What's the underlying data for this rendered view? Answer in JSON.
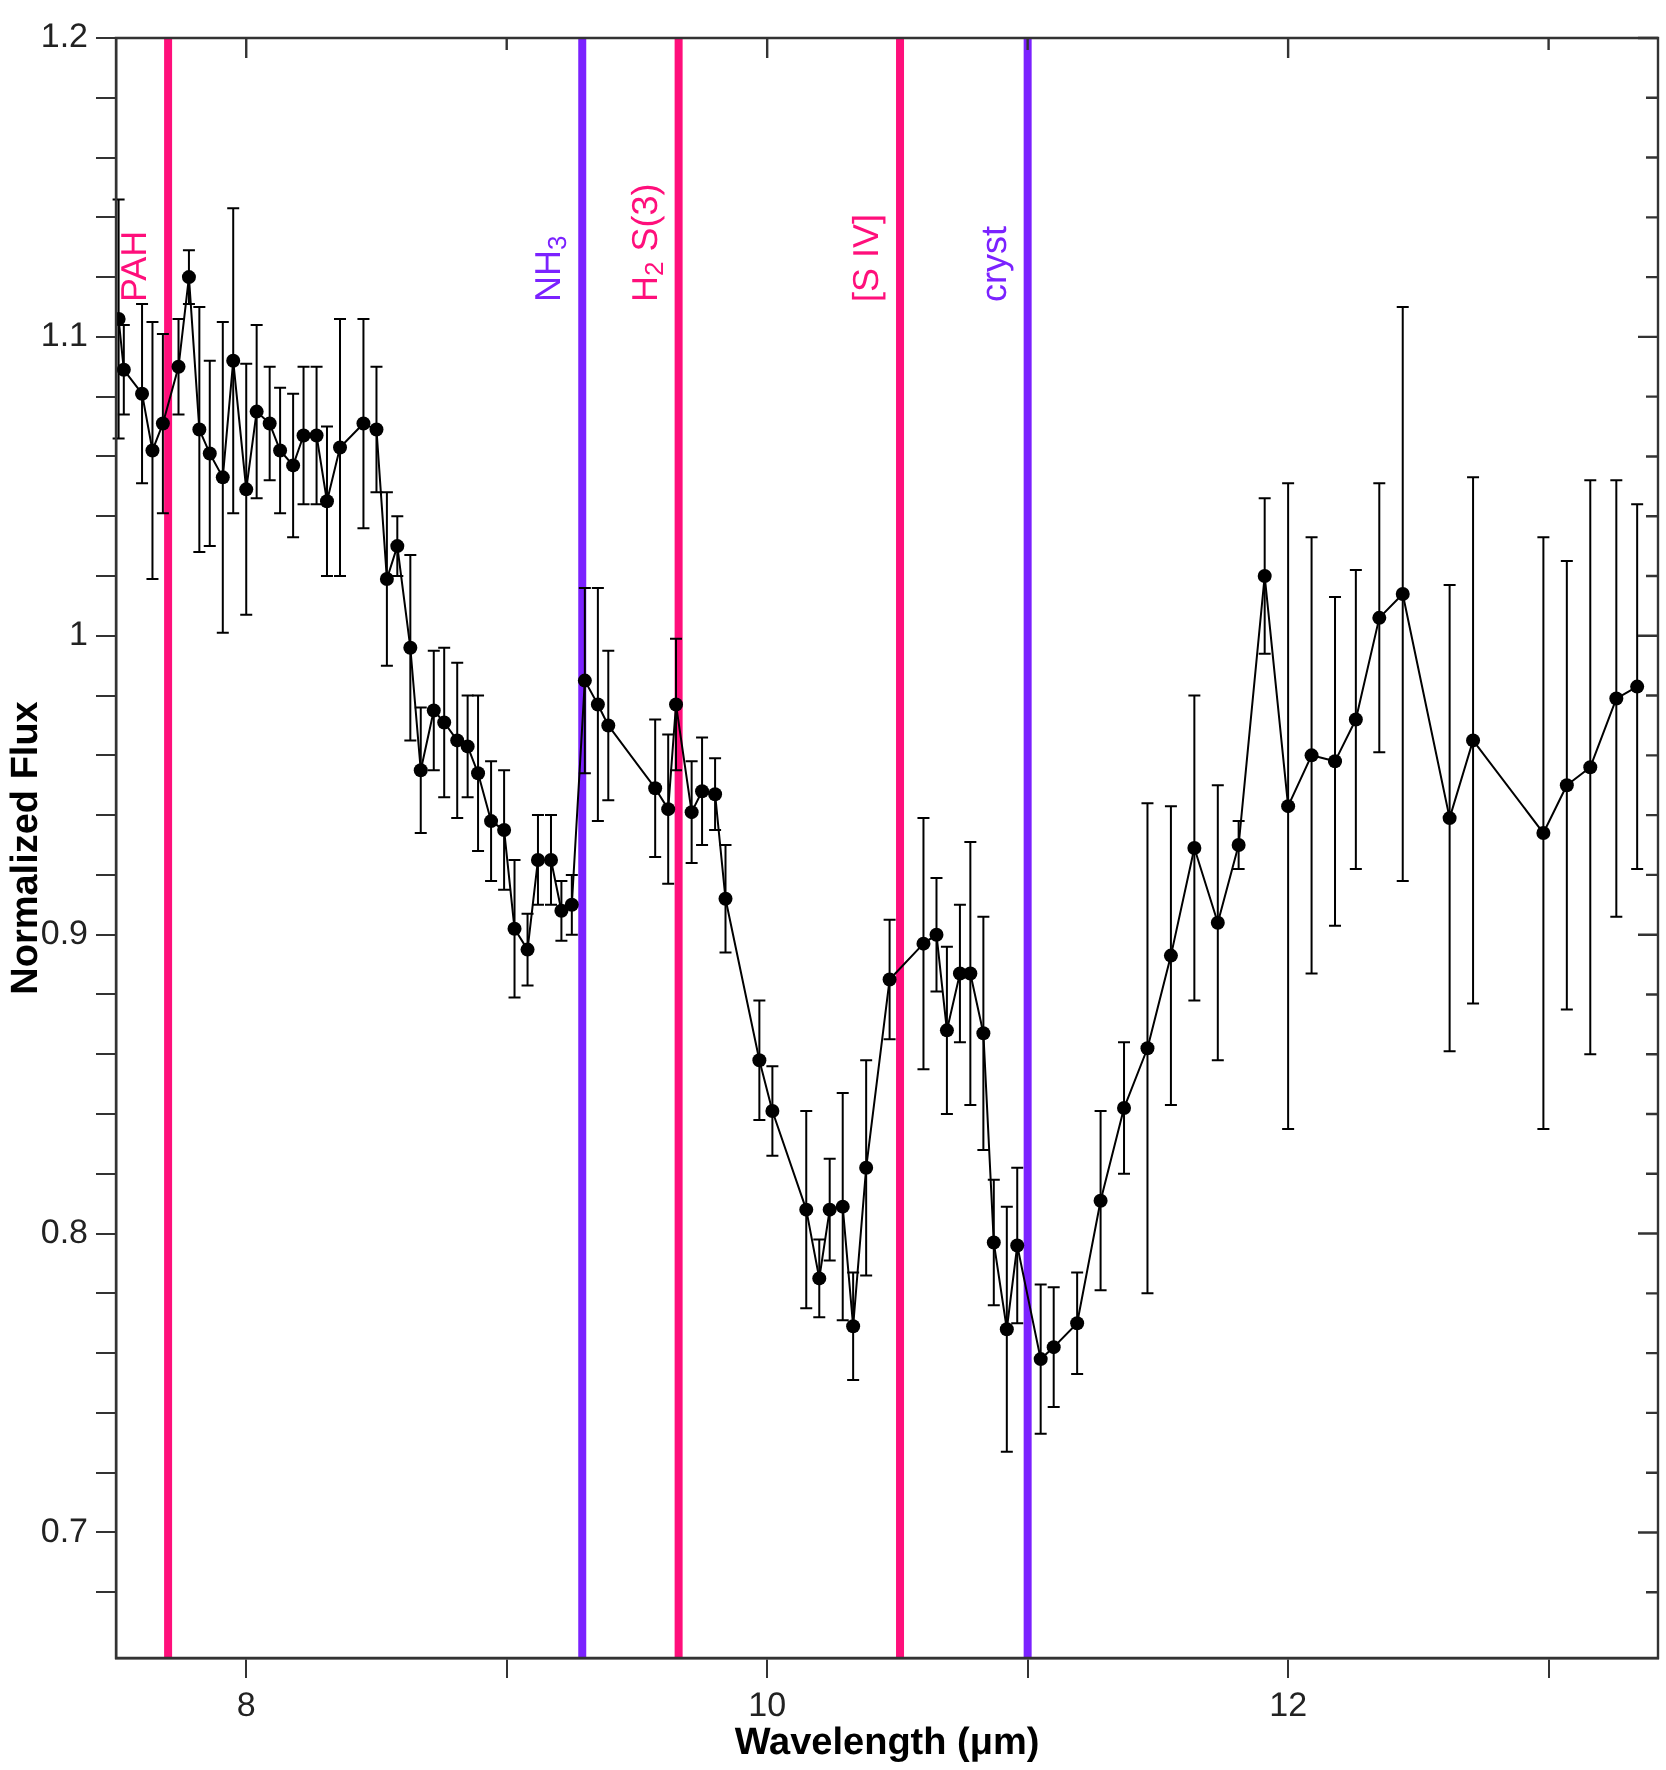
{
  "chart_data": {
    "type": "line",
    "xlabel": "Wavelength (μm)",
    "ylabel": "Normalized Flux",
    "x": [
      7.51,
      7.53,
      7.6,
      7.64,
      7.68,
      7.74,
      7.78,
      7.82,
      7.86,
      7.91,
      7.95,
      8.0,
      8.04,
      8.09,
      8.13,
      8.18,
      8.22,
      8.27,
      8.31,
      8.36,
      8.45,
      8.5,
      8.54,
      8.58,
      8.63,
      8.67,
      8.72,
      8.76,
      8.81,
      8.85,
      8.89,
      8.94,
      8.99,
      9.03,
      9.08,
      9.12,
      9.17,
      9.21,
      9.25,
      9.3,
      9.35,
      9.39,
      9.57,
      9.62,
      9.65,
      9.71,
      9.75,
      9.8,
      9.84,
      9.97,
      10.02,
      10.15,
      10.2,
      10.24,
      10.29,
      10.33,
      10.38,
      10.47,
      10.6,
      10.65,
      10.69,
      10.74,
      10.78,
      10.83,
      10.87,
      10.92,
      10.96,
      11.05,
      11.1,
      11.19,
      11.28,
      11.37,
      11.46,
      11.55,
      11.64,
      11.73,
      11.81,
      11.91,
      12.0,
      12.09,
      12.18,
      12.26,
      12.35,
      12.44,
      12.62,
      12.71,
      12.98,
      13.07,
      13.16,
      13.26,
      13.34
    ],
    "series": [
      {
        "color": "#000000",
        "values": [
          1.106,
          1.089,
          1.081,
          1.062,
          1.071,
          1.09,
          1.12,
          1.069,
          1.061,
          1.053,
          1.092,
          1.049,
          1.075,
          1.071,
          1.062,
          1.057,
          1.067,
          1.067,
          1.045,
          1.063,
          1.071,
          1.069,
          1.019,
          1.03,
          0.996,
          0.955,
          0.975,
          0.971,
          0.965,
          0.963,
          0.954,
          0.938,
          0.935,
          0.902,
          0.895,
          0.925,
          0.925,
          0.908,
          0.91,
          0.985,
          0.977,
          0.97,
          0.949,
          0.942,
          0.977,
          0.941,
          0.948,
          0.947,
          0.912,
          0.858,
          0.841,
          0.808,
          0.785,
          0.808,
          0.809,
          0.769,
          0.822,
          0.885,
          0.897,
          0.9,
          0.868,
          0.887,
          0.887,
          0.867,
          0.797,
          0.768,
          0.796,
          0.758,
          0.762,
          0.77,
          0.811,
          0.842,
          0.862,
          0.893,
          0.929,
          0.904,
          0.93,
          1.02,
          0.943,
          0.96,
          0.958,
          0.972,
          1.006,
          1.014,
          0.939,
          0.965,
          0.934,
          0.95,
          0.956,
          0.979,
          0.983
        ],
        "errors": [
          0.04,
          0.015,
          0.03,
          0.043,
          0.03,
          0.016,
          0.009,
          0.041,
          0.031,
          0.052,
          0.051,
          0.042,
          0.029,
          0.019,
          0.021,
          0.024,
          0.023,
          0.023,
          0.025,
          0.043,
          0.035,
          0.021,
          0.029,
          0.01,
          0.031,
          0.021,
          0.02,
          0.025,
          0.026,
          0.017,
          0.026,
          0.02,
          0.02,
          0.023,
          0.012,
          0.015,
          0.015,
          0.01,
          0.01,
          0.031,
          0.039,
          0.025,
          0.023,
          0.025,
          0.022,
          0.017,
          0.018,
          0.012,
          0.018,
          0.02,
          0.015,
          0.033,
          0.013,
          0.017,
          0.038,
          0.018,
          0.036,
          0.02,
          0.042,
          0.019,
          0.028,
          0.023,
          0.044,
          0.039,
          0.021,
          0.041,
          0.026,
          0.025,
          0.02,
          0.017,
          0.03,
          0.022,
          0.082,
          0.05,
          0.051,
          0.046,
          0.008,
          0.026,
          0.108,
          0.073,
          0.055,
          0.05,
          0.045,
          0.096,
          0.078,
          0.088,
          0.099,
          0.075,
          0.096,
          0.073,
          0.061
        ]
      }
    ],
    "marker": "circle",
    "line_style": "solid",
    "grid": false,
    "legend": false,
    "xlim": [
      7.5,
      13.42
    ],
    "xticks": [
      8,
      {
        "value": 9,
        "label": null
      },
      10,
      {
        "value": 11,
        "label": null
      },
      12,
      {
        "value": 13,
        "label": null
      }
    ],
    "ylim": [
      0.658,
      1.2
    ],
    "yticks": [
      {
        "value": 0.68,
        "label": null
      },
      0.7,
      {
        "value": 0.72,
        "label": null
      },
      {
        "value": 0.74,
        "label": null
      },
      {
        "value": 0.76,
        "label": null
      },
      {
        "value": 0.78,
        "label": null
      },
      0.8,
      {
        "value": 0.82,
        "label": null
      },
      {
        "value": 0.84,
        "label": null
      },
      {
        "value": 0.86,
        "label": null
      },
      {
        "value": 0.88,
        "label": null
      },
      0.9,
      {
        "value": 0.92,
        "label": null
      },
      {
        "value": 0.94,
        "label": null
      },
      {
        "value": 0.96,
        "label": null
      },
      {
        "value": 0.98,
        "label": null
      },
      1,
      {
        "value": 1.02,
        "label": null
      },
      {
        "value": 1.04,
        "label": null
      },
      {
        "value": 1.06,
        "label": null
      },
      {
        "value": 1.08,
        "label": null
      },
      1.1,
      {
        "value": 1.12,
        "label": null
      },
      {
        "value": 1.14,
        "label": null
      },
      {
        "value": 1.16,
        "label": null
      },
      {
        "value": 1.18,
        "label": null
      },
      1.2
    ],
    "ref_lines": [
      {
        "axis": "x",
        "value": 7.7,
        "label": "PAH",
        "color": "#ff0f7b"
      },
      {
        "axis": "x",
        "value": 9.29,
        "label": "NH$_{3}$",
        "color": "#7b22ff"
      },
      {
        "axis": "x",
        "value": 9.66,
        "label": "H$_{2}$ S(3)",
        "color": "#ff0f7b"
      },
      {
        "axis": "x",
        "value": 10.51,
        "label": "[S IV]",
        "color": "#ff0f7b"
      },
      {
        "axis": "x",
        "value": 11.0,
        "label": "cryst",
        "color": "#7b22ff"
      }
    ]
  }
}
